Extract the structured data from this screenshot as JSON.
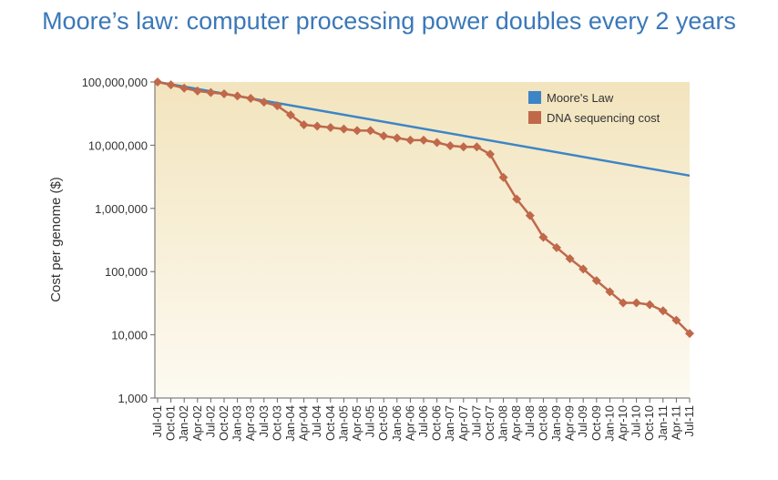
{
  "chart_data": {
    "type": "line",
    "title": "Moore’s law: computer processing power doubles every 2 years",
    "y_label": "Cost per genome ($)",
    "log_scale_y": true,
    "legend": "top-right",
    "categories": [
      "Jul-01",
      "Oct-01",
      "Jan-02",
      "Apr-02",
      "Jul-02",
      "Oct-02",
      "Jan-03",
      "Apr-03",
      "Jul-03",
      "Oct-03",
      "Jan-04",
      "Apr-04",
      "Jul-04",
      "Oct-04",
      "Jan-05",
      "Apr-05",
      "Jul-05",
      "Oct-05",
      "Jan-06",
      "Apr-06",
      "Jul-06",
      "Oct-06",
      "Jan-07",
      "Apr-07",
      "Jul-07",
      "Oct-07",
      "Jan-08",
      "Apr-08",
      "Jul-08",
      "Oct-08",
      "Jan-09",
      "Apr-09",
      "Jul-09",
      "Oct-09",
      "Jan-10",
      "Apr-10",
      "Jul-10",
      "Oct-10",
      "Jan-11",
      "Apr-11",
      "Jul-11"
    ],
    "series": [
      {
        "name": "Moore's Law",
        "color": "#3d85c6",
        "x": [
          "Jul-01",
          "Jul-11"
        ],
        "values": [
          100000000,
          3300000
        ]
      },
      {
        "name": "DNA sequencing cost",
        "color": "#c0684a",
        "marker": "diamond",
        "values": [
          100000000,
          90000000,
          80000000,
          72000000,
          68000000,
          65000000,
          60000000,
          55000000,
          48000000,
          42000000,
          30000000,
          21000000,
          20000000,
          19000000,
          18000000,
          17000000,
          17000000,
          14000000,
          13000000,
          12000000,
          12000000,
          11000000,
          9800000,
          9400000,
          9400000,
          7200000,
          3100000,
          1400000,
          770000,
          350000,
          240000,
          160000,
          110000,
          72000,
          48000,
          32000,
          32000,
          30000,
          24000,
          17000,
          10500
        ]
      }
    ],
    "ylim": [
      1000,
      100000000
    ],
    "yticks": [
      {
        "value": 1000,
        "label": "1,000"
      },
      {
        "value": 10000,
        "label": "10,000"
      },
      {
        "value": 100000,
        "label": "100,000"
      },
      {
        "value": 1000000,
        "label": "1,000,000"
      },
      {
        "value": 10000000,
        "label": "10,000,000"
      },
      {
        "value": 100000000,
        "label": "100,000,000"
      }
    ]
  }
}
